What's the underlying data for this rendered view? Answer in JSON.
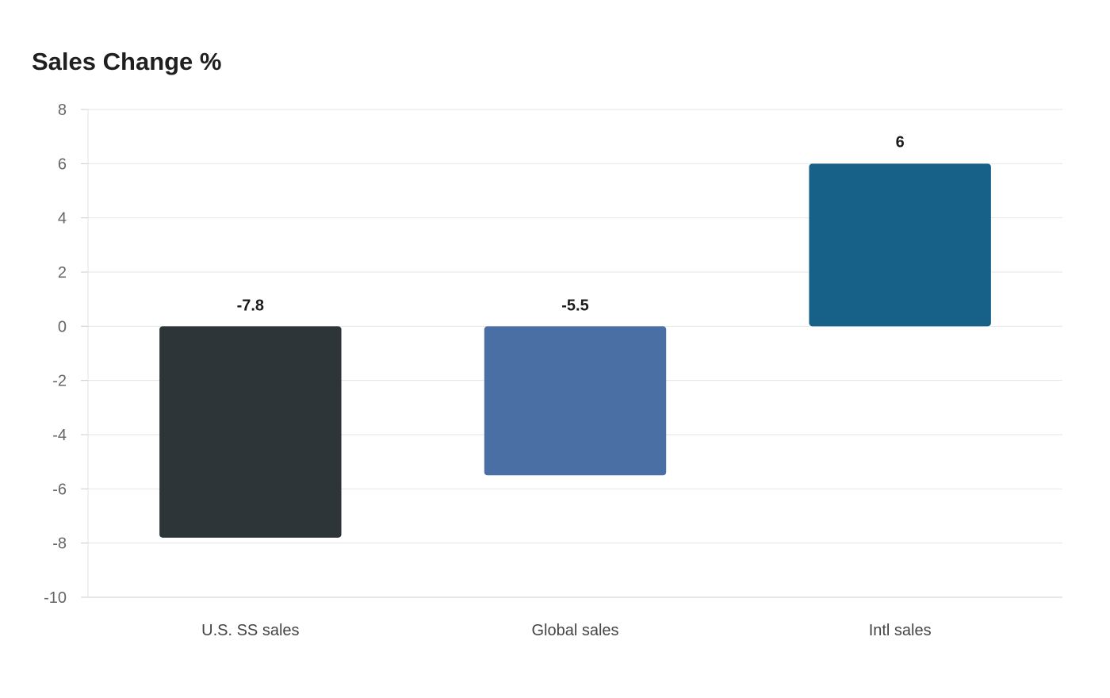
{
  "chart_data": {
    "type": "bar",
    "title": "Sales Change %",
    "categories": [
      "U.S. SS sales",
      "Global sales",
      "Intl sales"
    ],
    "values": [
      -7.8,
      -5.5,
      6
    ],
    "data_labels": [
      "-7.8",
      "-5.5",
      "6"
    ],
    "colors": [
      "#2e3538",
      "#4a6fa5",
      "#176188"
    ],
    "ylim": [
      -10,
      8
    ],
    "yticks": [
      8,
      6,
      4,
      2,
      0,
      -2,
      -4,
      -6,
      -8,
      -10
    ],
    "ytick_labels": [
      "8",
      "6",
      "4",
      "2",
      "0",
      "-2",
      "-4",
      "-6",
      "-8",
      "-10"
    ],
    "xlabel": "",
    "ylabel": "",
    "grid": true,
    "legend": "none"
  }
}
